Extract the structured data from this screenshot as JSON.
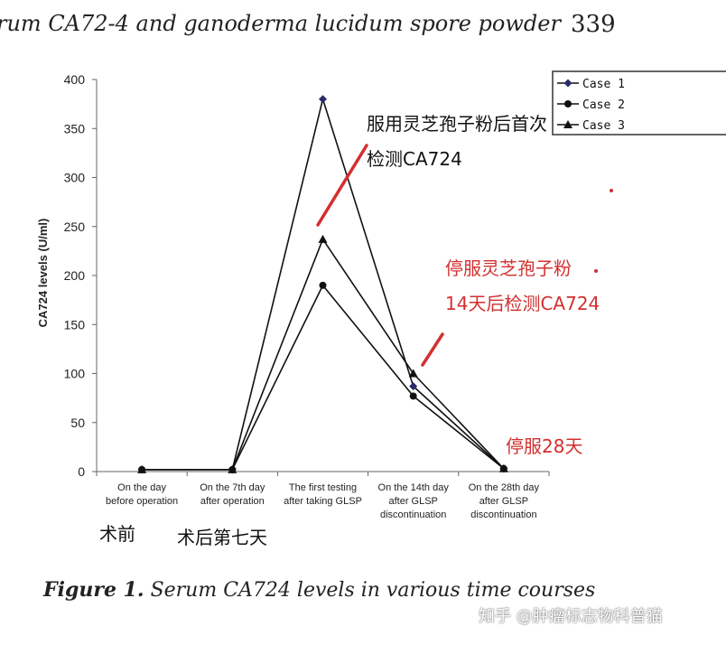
{
  "header": {
    "running_title": "rum CA72-4 and ganoderma lucidum spore powder",
    "page_number": "339"
  },
  "caption": {
    "label": "Figure 1.",
    "text": "Serum CA724 levels in various time courses"
  },
  "watermark": "知乎 @肿瘤标志物科普猫",
  "annotations": {
    "first_test_line1": "服用灵芝孢子粉后首次",
    "first_test_line2": "检测CA724",
    "stop_line1": "停服灵芝孢子粉",
    "stop_line2": "14天后检测CA724",
    "day28": "停服28天",
    "preop": "术前",
    "postop": "术后第七天"
  },
  "colors": {
    "annotation_black": "#111111",
    "annotation_red": "#d32f2f",
    "case1_marker": "#2a2a6a",
    "axis": "#666666"
  },
  "chart_data": {
    "type": "line",
    "title": "",
    "ylabel": "CA724 levels (U/ml)",
    "xlabel": "",
    "ylim": [
      0,
      400
    ],
    "yticks": [
      0,
      50,
      100,
      150,
      200,
      250,
      300,
      350,
      400
    ],
    "grid": false,
    "legend_position": "top-right",
    "categories": [
      [
        "On the day",
        "before operation"
      ],
      [
        "On the 7th day",
        "after operation"
      ],
      [
        "The first testing",
        "after taking GLSP"
      ],
      [
        "On the 14th day",
        "after GLSP",
        "discontinuation"
      ],
      [
        "On the 28th day",
        "after GLSP",
        "discontinuation"
      ]
    ],
    "series": [
      {
        "name": "Case 1",
        "marker": "diamond",
        "values": [
          2,
          2,
          380,
          87,
          3
        ]
      },
      {
        "name": "Case 2",
        "marker": "circle",
        "values": [
          2,
          2,
          190,
          77,
          3
        ]
      },
      {
        "name": "Case 3",
        "marker": "triangle",
        "values": [
          2,
          2,
          237,
          100,
          3
        ]
      }
    ]
  }
}
